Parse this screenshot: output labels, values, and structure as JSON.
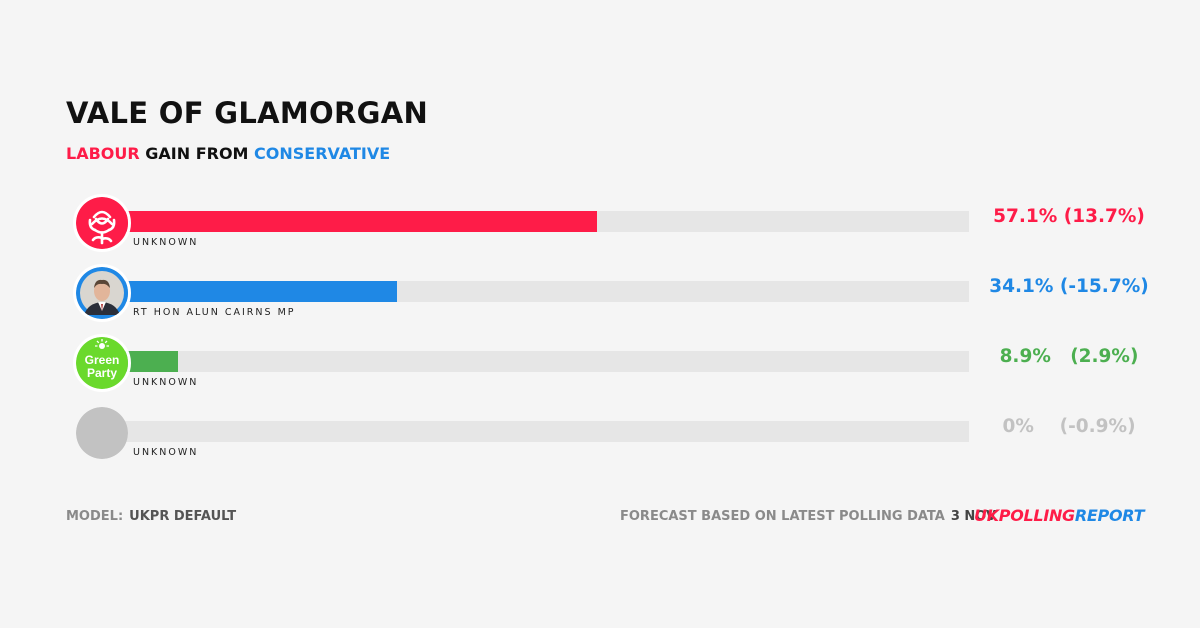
{
  "title": "VALE OF GLAMORGAN",
  "subtitle": {
    "winner": "LABOUR",
    "middle": " GAIN FROM ",
    "loser": "CONSERVATIVE"
  },
  "colors": {
    "labour": "#fe1c48",
    "conservative": "#1f88e5",
    "green": "#4caf50",
    "other": "#c2c2c2",
    "track": "#e6e6e6"
  },
  "chart_data": {
    "type": "bar",
    "orientation": "horizontal",
    "xlim": [
      0,
      100
    ],
    "series": [
      {
        "party": "Labour",
        "candidate": "UNKNOWN",
        "share": 57.1,
        "share_label": "57.1%",
        "change_label": "(13.7%)",
        "color": "#fe1c48",
        "icon": "labour-rose-icon"
      },
      {
        "party": "Conservative",
        "candidate": "RT HON ALUN CAIRNS MP",
        "share": 34.1,
        "share_label": "34.1%",
        "change_label": "(-15.7%)",
        "color": "#1f88e5",
        "icon": "candidate-photo"
      },
      {
        "party": "Green",
        "candidate": "UNKNOWN",
        "share": 8.9,
        "share_label": "8.9%",
        "change_label": "(2.9%)",
        "color": "#4caf50",
        "icon": "green-party-logo-icon"
      },
      {
        "party": "Other",
        "candidate": "UNKNOWN",
        "share": 0,
        "share_label": "0%",
        "change_label": "(-0.9%)",
        "color": "#c2c2c2",
        "icon": "placeholder-avatar-icon"
      }
    ]
  },
  "logos": {
    "green_party_line1": "Green",
    "green_party_line2": "Party"
  },
  "footer": {
    "model_label": "MODEL:",
    "model_value": "UKPR DEFAULT",
    "forecast_text": "FORECAST BASED ON LATEST POLLING DATA",
    "date": "3 NOV",
    "brand_part1": "UK",
    "brand_part2": "POLLING",
    "brand_part3": "REPORT"
  }
}
